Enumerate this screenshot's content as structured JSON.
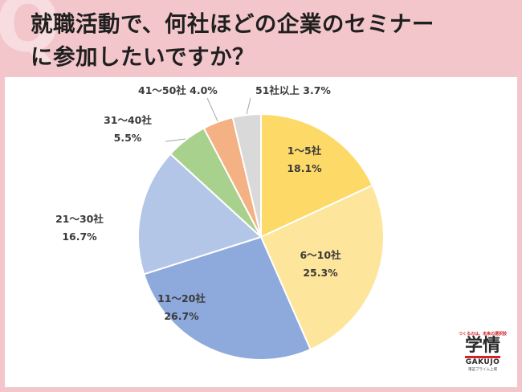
{
  "title": {
    "line1": "就職活動で、何社ほどの企業のセミナー",
    "line2": "に参加したいですか？",
    "deco": "Q"
  },
  "chart_data": {
    "type": "pie",
    "categories": [
      "1〜5社",
      "6〜10社",
      "11〜20社",
      "21〜30社",
      "31〜40社",
      "41〜50社",
      "51社以上"
    ],
    "values": [
      18.1,
      25.3,
      26.7,
      16.7,
      5.5,
      4.0,
      3.7
    ],
    "value_labels": [
      "18.1%",
      "25.3%",
      "26.7%",
      "16.7%",
      "5.5%",
      "4.0%",
      "3.7%"
    ],
    "colors": [
      "#fdd968",
      "#fde59b",
      "#8ea9db",
      "#b4c6e7",
      "#a9d18e",
      "#f4b183",
      "#d9d9d9"
    ],
    "start_angle": "12 o'clock",
    "direction": "clockwise"
  },
  "logo": {
    "tagline": "つくるのは、未来の選択肢",
    "name": "学情",
    "name_en": "GAKUJO",
    "sub": "東証プライム上場"
  }
}
